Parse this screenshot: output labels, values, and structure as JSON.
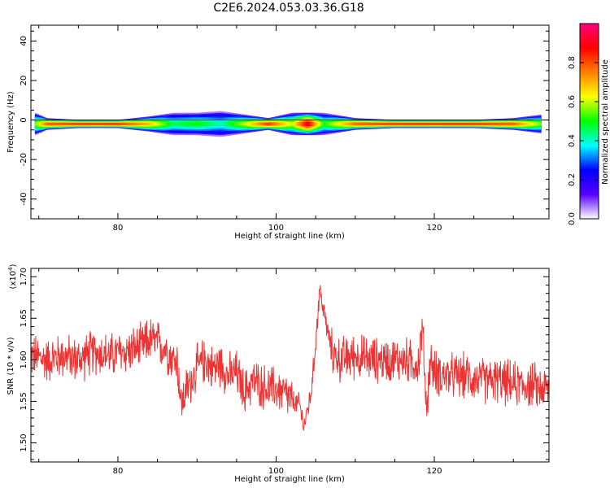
{
  "title": "C2E6.2024.053.03.36.G18",
  "chart_data": [
    {
      "type": "heatmap",
      "xlabel": "Height of straight line (km)",
      "ylabel": "Frequency (Hz)",
      "xlim": [
        69,
        134.5
      ],
      "ylim": [
        -50,
        48
      ],
      "xticks": [
        80,
        100,
        120
      ],
      "yticks": [
        40,
        20,
        0,
        -20,
        -40
      ],
      "colorbar": {
        "label": "Normalized spectral amplitude",
        "range": [
          0.0,
          1.0
        ],
        "ticks": [
          "0.0",
          "0.2",
          "0.4",
          "0.6",
          "0.8"
        ],
        "colors": [
          "#ffffff",
          "#5500ff",
          "#0000ff",
          "#00ffff",
          "#00ff00",
          "#ffff00",
          "#ff8000",
          "#ff0000",
          "#ff0080"
        ]
      },
      "band": {
        "center_hz": -2,
        "profile": [
          {
            "x": 69.5,
            "intensity": 0.55,
            "width_hz": 6
          },
          {
            "x": 71,
            "intensity": 0.8,
            "width_hz": 3
          },
          {
            "x": 75,
            "intensity": 0.85,
            "width_hz": 2
          },
          {
            "x": 80,
            "intensity": 0.85,
            "width_hz": 2
          },
          {
            "x": 84,
            "intensity": 0.7,
            "width_hz": 4
          },
          {
            "x": 87,
            "intensity": 0.45,
            "width_hz": 6
          },
          {
            "x": 90,
            "intensity": 0.5,
            "width_hz": 6
          },
          {
            "x": 93,
            "intensity": 0.4,
            "width_hz": 7
          },
          {
            "x": 96,
            "intensity": 0.6,
            "width_hz": 5
          },
          {
            "x": 99,
            "intensity": 0.85,
            "width_hz": 3
          },
          {
            "x": 102,
            "intensity": 0.6,
            "width_hz": 6
          },
          {
            "x": 104,
            "intensity": 0.95,
            "width_hz": 6
          },
          {
            "x": 106,
            "intensity": 0.5,
            "width_hz": 6
          },
          {
            "x": 110,
            "intensity": 0.8,
            "width_hz": 3
          },
          {
            "x": 115,
            "intensity": 0.85,
            "width_hz": 2
          },
          {
            "x": 120,
            "intensity": 0.85,
            "width_hz": 2
          },
          {
            "x": 125,
            "intensity": 0.85,
            "width_hz": 2
          },
          {
            "x": 130,
            "intensity": 0.8,
            "width_hz": 3
          },
          {
            "x": 133.5,
            "intensity": 0.55,
            "width_hz": 5
          }
        ]
      }
    },
    {
      "type": "line",
      "xlabel": "Height of straight line (km)",
      "ylabel": "SNR (10 * v/v)",
      "yscale_label": "(x10",
      "yscale_exp": "4",
      "yscale_close": ")",
      "xlim": [
        69,
        134.5
      ],
      "ylim": [
        1.477,
        1.71
      ],
      "xticks": [
        80,
        100,
        120
      ],
      "yticks": [
        "1.50",
        "1.55",
        "1.60",
        "1.65",
        "1.70"
      ],
      "color": "#ee3333",
      "series": [
        {
          "x": [
            69,
            71,
            73,
            75,
            77,
            79,
            81,
            83,
            84,
            85,
            86,
            87,
            87.5,
            88,
            88.5,
            89,
            90,
            91,
            92,
            93,
            94,
            95,
            96,
            97,
            98,
            99,
            100,
            101,
            102,
            103,
            103.5,
            104,
            104.5,
            105,
            105.5,
            106,
            107,
            108,
            110,
            112,
            114,
            116,
            118,
            118.5,
            119,
            119.5,
            120,
            122,
            124,
            126,
            128,
            130,
            132,
            134,
            134.5
          ],
          "y": [
            1.605,
            1.6,
            1.605,
            1.6,
            1.61,
            1.605,
            1.61,
            1.615,
            1.625,
            1.62,
            1.615,
            1.6,
            1.6,
            1.545,
            1.56,
            1.57,
            1.59,
            1.6,
            1.59,
            1.595,
            1.58,
            1.585,
            1.56,
            1.575,
            1.57,
            1.565,
            1.565,
            1.56,
            1.55,
            1.545,
            1.52,
            1.54,
            1.565,
            1.62,
            1.685,
            1.66,
            1.61,
            1.6,
            1.605,
            1.6,
            1.6,
            1.6,
            1.595,
            1.64,
            1.54,
            1.6,
            1.585,
            1.58,
            1.58,
            1.575,
            1.575,
            1.57,
            1.57,
            1.565,
            1.565
          ]
        }
      ]
    }
  ]
}
